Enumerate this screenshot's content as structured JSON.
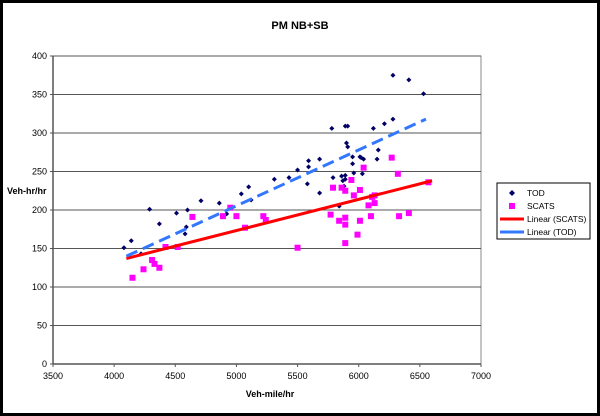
{
  "chart_data": {
    "type": "scatter",
    "title": "PM NB+SB",
    "xlabel": "Veh-mile/hr",
    "ylabel": "Veh-hr/hr",
    "xlim": [
      3500,
      7000
    ],
    "ylim": [
      0,
      400
    ],
    "xticks": [
      3500,
      4000,
      4500,
      5000,
      5500,
      6000,
      6500,
      7000
    ],
    "yticks": [
      0,
      50,
      100,
      150,
      200,
      250,
      300,
      350,
      400
    ],
    "grid": "horizontal",
    "legend_position": "right",
    "series": [
      {
        "name": "TOD",
        "kind": "points",
        "marker": "diamond",
        "color": "#000066",
        "points": [
          [
            4080,
            151
          ],
          [
            4140,
            160
          ],
          [
            4220,
            143
          ],
          [
            4290,
            201
          ],
          [
            4370,
            182
          ],
          [
            4510,
            196
          ],
          [
            4600,
            200
          ],
          [
            4580,
            169
          ],
          [
            4590,
            178
          ],
          [
            4710,
            212
          ],
          [
            4860,
            209
          ],
          [
            4920,
            195
          ],
          [
            5040,
            221
          ],
          [
            5100,
            230
          ],
          [
            5120,
            213
          ],
          [
            5310,
            240
          ],
          [
            5430,
            242
          ],
          [
            5500,
            252
          ],
          [
            5590,
            264
          ],
          [
            5590,
            256
          ],
          [
            5580,
            234
          ],
          [
            5680,
            266
          ],
          [
            5680,
            222
          ],
          [
            5780,
            306
          ],
          [
            5790,
            242
          ],
          [
            5840,
            205
          ],
          [
            5860,
            244
          ],
          [
            5870,
            238
          ],
          [
            5890,
            240
          ],
          [
            5880,
            231
          ],
          [
            5890,
            245
          ],
          [
            5890,
            309
          ],
          [
            5910,
            309
          ],
          [
            5900,
            287
          ],
          [
            5910,
            282
          ],
          [
            5950,
            269
          ],
          [
            5960,
            248
          ],
          [
            5950,
            260
          ],
          [
            6010,
            269
          ],
          [
            6020,
            268
          ],
          [
            6040,
            266
          ],
          [
            6030,
            247
          ],
          [
            6120,
            306
          ],
          [
            6160,
            278
          ],
          [
            6150,
            266
          ],
          [
            6210,
            312
          ],
          [
            6280,
            318
          ],
          [
            6280,
            375
          ],
          [
            6410,
            369
          ],
          [
            6530,
            351
          ]
        ]
      },
      {
        "name": "SCATS",
        "kind": "points",
        "marker": "square",
        "color": "#FF00FF",
        "points": [
          [
            4150,
            112
          ],
          [
            4240,
            123
          ],
          [
            4310,
            135
          ],
          [
            4330,
            130
          ],
          [
            4370,
            125
          ],
          [
            4420,
            152
          ],
          [
            4520,
            152
          ],
          [
            4640,
            191
          ],
          [
            4890,
            192
          ],
          [
            4950,
            203
          ],
          [
            5000,
            192
          ],
          [
            5070,
            177
          ],
          [
            5220,
            192
          ],
          [
            5240,
            187
          ],
          [
            5500,
            151
          ],
          [
            5770,
            194
          ],
          [
            5790,
            229
          ],
          [
            5840,
            186
          ],
          [
            5860,
            229
          ],
          [
            5890,
            225
          ],
          [
            5890,
            190
          ],
          [
            5890,
            181
          ],
          [
            5890,
            157
          ],
          [
            5940,
            239
          ],
          [
            5960,
            219
          ],
          [
            5990,
            168
          ],
          [
            6010,
            226
          ],
          [
            6010,
            186
          ],
          [
            6040,
            255
          ],
          [
            6080,
            206
          ],
          [
            6100,
            192
          ],
          [
            6110,
            217
          ],
          [
            6130,
            209
          ],
          [
            6130,
            219
          ],
          [
            6270,
            268
          ],
          [
            6320,
            247
          ],
          [
            6330,
            192
          ],
          [
            6410,
            196
          ],
          [
            6570,
            236
          ]
        ]
      },
      {
        "name": "Linear (SCATS)",
        "kind": "line",
        "dash": false,
        "color": "#FF0000",
        "points": [
          [
            4100,
            137
          ],
          [
            6600,
            238
          ]
        ]
      },
      {
        "name": "Linear (TOD)",
        "kind": "line",
        "dash": true,
        "color": "#3377FF",
        "points": [
          [
            4100,
            140
          ],
          [
            6550,
            318
          ]
        ]
      }
    ]
  }
}
